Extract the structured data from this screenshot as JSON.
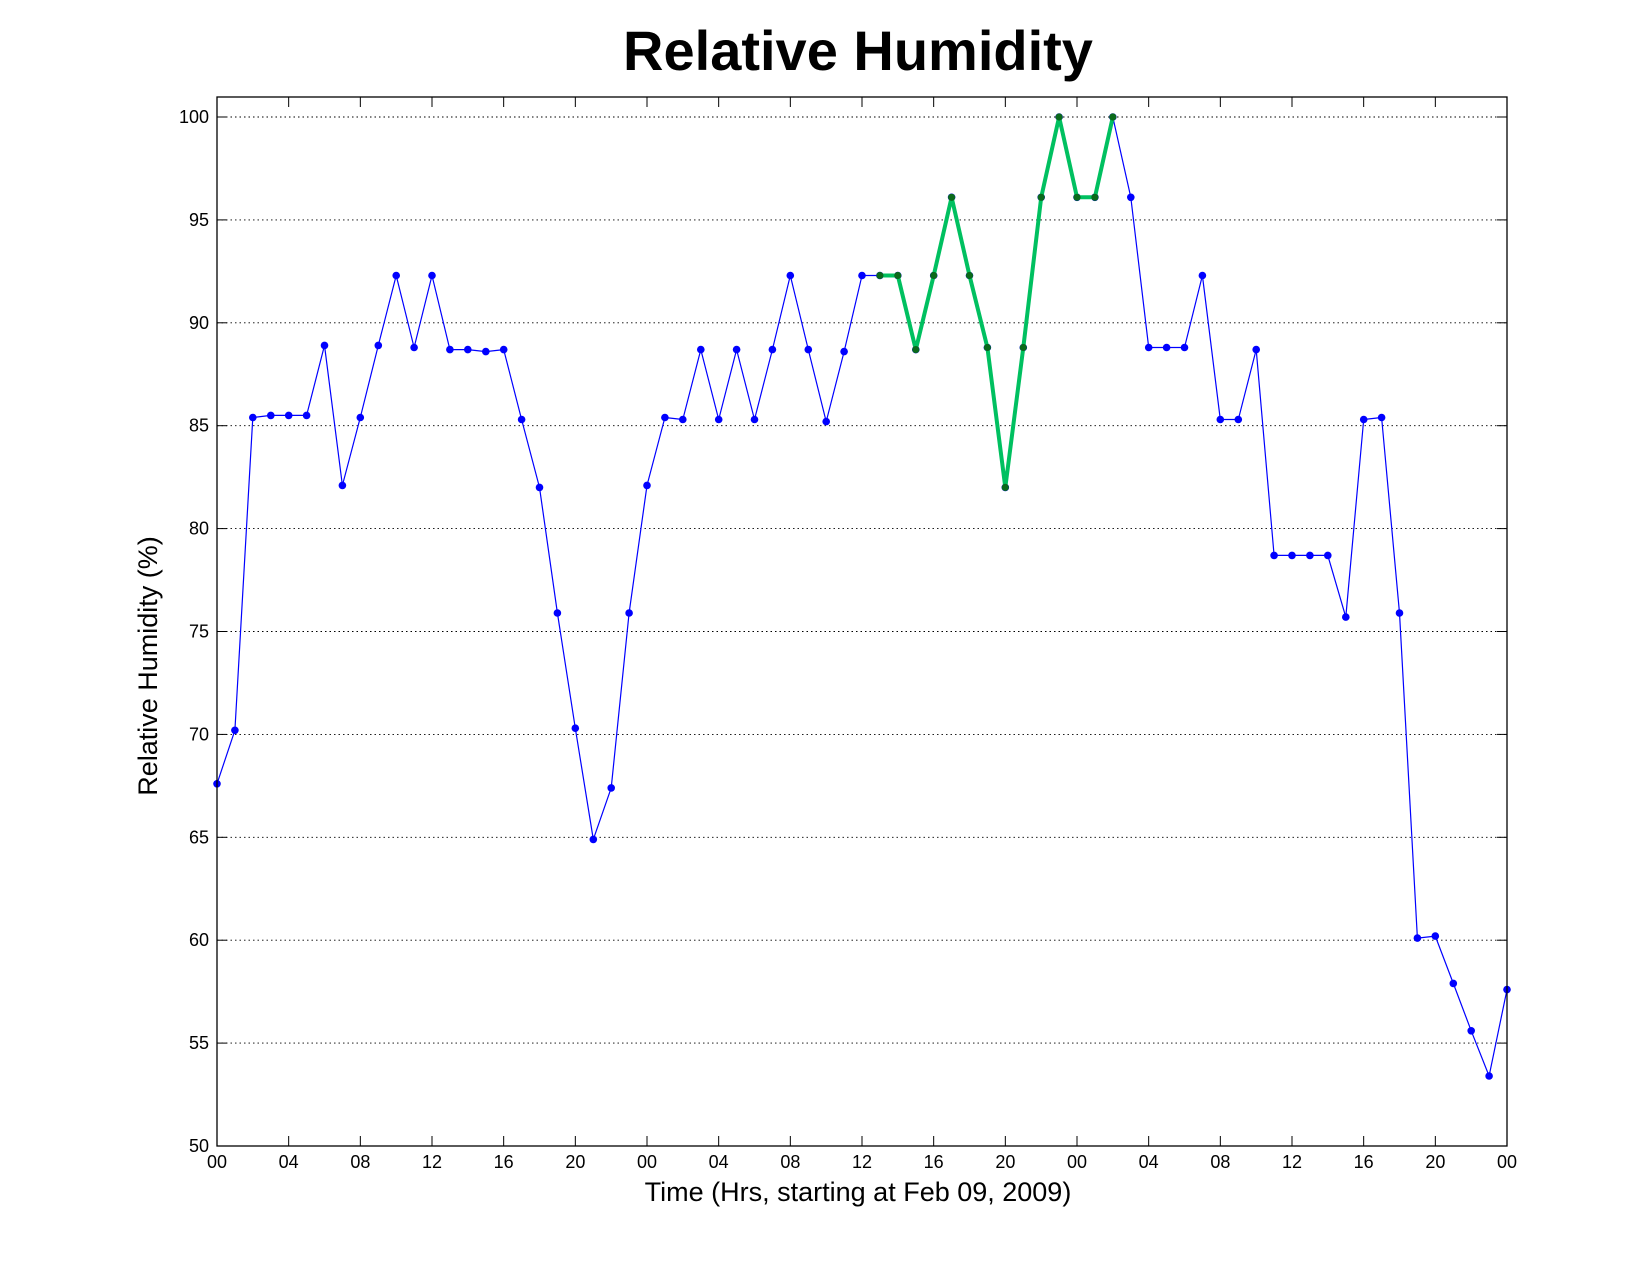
{
  "chart_data": {
    "type": "line",
    "title": "Relative Humidity",
    "xlabel": "Time (Hrs, starting at Feb 09, 2009)",
    "ylabel": "Relative Humidity (%)",
    "ylim": [
      50,
      100
    ],
    "xlim": [
      0,
      72
    ],
    "grid": true,
    "x_ticks": [
      0,
      4,
      8,
      12,
      16,
      20,
      24,
      28,
      32,
      36,
      40,
      44,
      48,
      52,
      56,
      60,
      64,
      68,
      72
    ],
    "x_tick_labels": [
      "00",
      "04",
      "08",
      "12",
      "16",
      "20",
      "00",
      "04",
      "08",
      "12",
      "16",
      "20",
      "00",
      "04",
      "08",
      "12",
      "16",
      "20",
      "00"
    ],
    "y_ticks": [
      50,
      55,
      60,
      65,
      70,
      75,
      80,
      85,
      90,
      95,
      100
    ],
    "series": [
      {
        "color": "#0000ff",
        "x": [
          0,
          1,
          2,
          3,
          4,
          5,
          6,
          7,
          8,
          9,
          10,
          11,
          12,
          13,
          14,
          15,
          16,
          17,
          18,
          19,
          20,
          21,
          22,
          23,
          24,
          25,
          26,
          27,
          28,
          29,
          30,
          31,
          32,
          33,
          34,
          35,
          36,
          37,
          38,
          39,
          40,
          41,
          42,
          43,
          44,
          45,
          46,
          47,
          48,
          49,
          50,
          51,
          52,
          53,
          54,
          55,
          56,
          57,
          58,
          59,
          60,
          61,
          62,
          63,
          64,
          65,
          66,
          67,
          68,
          69,
          70,
          71,
          72
        ],
        "values": [
          67.6,
          70.2,
          85.4,
          85.5,
          85.5,
          85.5,
          88.9,
          82.1,
          85.4,
          88.9,
          92.3,
          88.8,
          92.3,
          88.7,
          88.7,
          88.6,
          88.7,
          85.3,
          82.0,
          75.9,
          70.3,
          64.9,
          67.4,
          75.9,
          82.1,
          85.4,
          85.3,
          88.7,
          85.3,
          88.7,
          85.3,
          88.7,
          92.3,
          88.7,
          85.2,
          88.6,
          92.3,
          92.3,
          92.3,
          88.7,
          92.3,
          96.1,
          92.3,
          88.8,
          82.0,
          88.8,
          96.1,
          100.0,
          96.1,
          96.1,
          100.0,
          96.1,
          88.8,
          88.8,
          88.8,
          92.3,
          85.3,
          85.3,
          88.7,
          78.7,
          78.7,
          78.7,
          78.7,
          75.7,
          85.3,
          85.4,
          75.9,
          60.1,
          60.2,
          57.9,
          55.6,
          53.4,
          57.6
        ]
      },
      {
        "color": "#00c060",
        "x": [
          37,
          38,
          39,
          40,
          41,
          42,
          43,
          44,
          45,
          46,
          47,
          48,
          49,
          50
        ],
        "values": [
          92.3,
          92.3,
          88.7,
          92.3,
          96.1,
          92.3,
          88.8,
          82.0,
          88.8,
          96.1,
          100.0,
          96.1,
          96.1,
          100.0
        ]
      }
    ]
  }
}
